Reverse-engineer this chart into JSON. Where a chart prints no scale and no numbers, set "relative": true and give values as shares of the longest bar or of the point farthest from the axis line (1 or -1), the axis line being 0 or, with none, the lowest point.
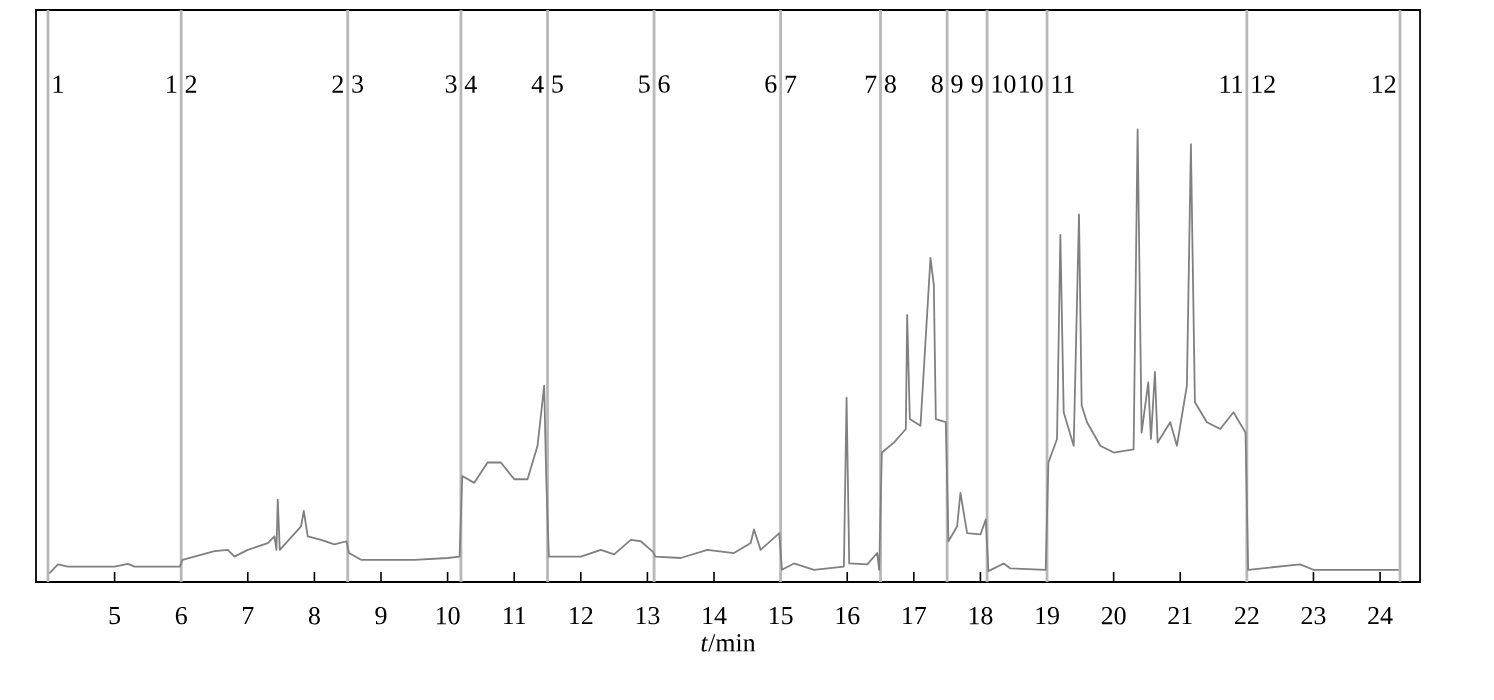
{
  "chart_data": {
    "type": "line",
    "xlabel": "*t*/min",
    "relative": true,
    "xlim": [
      3.82,
      24.6
    ],
    "xticks": [
      5,
      6,
      7,
      8,
      9,
      10,
      11,
      12,
      13,
      14,
      15,
      16,
      17,
      18,
      19,
      20,
      21,
      22,
      23,
      24
    ],
    "series": [
      {
        "color": "#808080",
        "x": [
          4.02,
          4.15,
          4.3,
          5.0,
          5.2,
          5.3,
          5.98,
          6.02,
          6.5,
          6.7,
          6.8,
          7.0,
          7.3,
          7.4,
          7.43,
          7.45,
          7.48,
          7.8,
          7.84,
          7.9,
          8.1,
          8.3,
          8.48,
          8.52,
          8.7,
          9.5,
          10.0,
          10.18,
          10.22,
          10.4,
          10.6,
          10.8,
          11.0,
          11.2,
          11.35,
          11.45,
          11.48,
          11.52,
          12.0,
          12.3,
          12.5,
          12.75,
          12.9,
          13.08,
          13.12,
          13.5,
          13.9,
          14.3,
          14.55,
          14.6,
          14.7,
          14.98,
          15.02,
          15.2,
          15.5,
          15.95,
          15.99,
          16.03,
          16.3,
          16.45,
          16.48,
          16.52,
          16.7,
          16.88,
          16.9,
          16.94,
          17.1,
          17.25,
          17.3,
          17.33,
          17.48,
          17.52,
          17.65,
          17.7,
          17.8,
          18.0,
          18.08,
          18.12,
          18.35,
          18.45,
          18.98,
          19.02,
          19.15,
          19.2,
          19.25,
          19.4,
          19.48,
          19.52,
          19.6,
          19.8,
          20.0,
          20.3,
          20.36,
          20.42,
          20.52,
          20.56,
          20.62,
          20.66,
          20.85,
          20.95,
          21.1,
          21.16,
          21.22,
          21.4,
          21.6,
          21.8,
          21.98,
          22.02,
          22.8,
          23.0,
          24.28
        ],
        "values": [
          0.019,
          0.039,
          0.034,
          0.034,
          0.04,
          0.034,
          0.034,
          0.049,
          0.068,
          0.071,
          0.056,
          0.071,
          0.086,
          0.101,
          0.071,
          0.182,
          0.071,
          0.123,
          0.157,
          0.101,
          0.093,
          0.083,
          0.09,
          0.064,
          0.049,
          0.049,
          0.053,
          0.056,
          0.234,
          0.219,
          0.264,
          0.264,
          0.227,
          0.227,
          0.301,
          0.434,
          0.234,
          0.056,
          0.056,
          0.071,
          0.061,
          0.093,
          0.09,
          0.067,
          0.056,
          0.053,
          0.071,
          0.064,
          0.086,
          0.116,
          0.071,
          0.108,
          0.027,
          0.041,
          0.027,
          0.034,
          0.407,
          0.041,
          0.039,
          0.064,
          0.027,
          0.286,
          0.308,
          0.338,
          0.59,
          0.36,
          0.345,
          0.716,
          0.656,
          0.36,
          0.353,
          0.09,
          0.123,
          0.197,
          0.108,
          0.105,
          0.138,
          0.024,
          0.041,
          0.03,
          0.027,
          0.264,
          0.316,
          0.767,
          0.375,
          0.301,
          0.812,
          0.39,
          0.353,
          0.301,
          0.286,
          0.293,
          1.0,
          0.33,
          0.441,
          0.316,
          0.464,
          0.308,
          0.353,
          0.301,
          0.434,
          0.967,
          0.397,
          0.353,
          0.338,
          0.375,
          0.33,
          0.027,
          0.039,
          0.027,
          0.027
        ]
      }
    ],
    "ref_lines": [
      {
        "axis": "x",
        "value": 4.0,
        "color": "#b8b8b8"
      },
      {
        "axis": "x",
        "value": 6.0,
        "color": "#b8b8b8"
      },
      {
        "axis": "x",
        "value": 8.5,
        "color": "#b8b8b8"
      },
      {
        "axis": "x",
        "value": 10.2,
        "color": "#b8b8b8"
      },
      {
        "axis": "x",
        "value": 11.5,
        "color": "#b8b8b8"
      },
      {
        "axis": "x",
        "value": 13.1,
        "color": "#b8b8b8"
      },
      {
        "axis": "x",
        "value": 15.0,
        "color": "#b8b8b8"
      },
      {
        "axis": "x",
        "value": 16.5,
        "color": "#b8b8b8"
      },
      {
        "axis": "x",
        "value": 17.5,
        "color": "#b8b8b8"
      },
      {
        "axis": "x",
        "value": 18.1,
        "color": "#b8b8b8"
      },
      {
        "axis": "x",
        "value": 19.0,
        "color": "#b8b8b8"
      },
      {
        "axis": "x",
        "value": 22.0,
        "color": "#b8b8b8"
      },
      {
        "axis": "x",
        "value": 24.3,
        "color": "#b8b8b8"
      }
    ],
    "annotations": [
      {
        "text": "1",
        "x": 4.0,
        "y": 1.08
      },
      {
        "text": "1",
        "x": 6.0,
        "y": 1.08
      },
      {
        "text": "2",
        "x": 6.0,
        "y": 1.08
      },
      {
        "text": "2",
        "x": 8.5,
        "y": 1.08
      },
      {
        "text": "3",
        "x": 8.5,
        "y": 1.08
      },
      {
        "text": "3",
        "x": 10.2,
        "y": 1.08
      },
      {
        "text": "4",
        "x": 10.2,
        "y": 1.08
      },
      {
        "text": "4",
        "x": 11.5,
        "y": 1.08
      },
      {
        "text": "5",
        "x": 11.5,
        "y": 1.08
      },
      {
        "text": "5",
        "x": 13.1,
        "y": 1.08
      },
      {
        "text": "6",
        "x": 13.1,
        "y": 1.08
      },
      {
        "text": "6",
        "x": 15.0,
        "y": 1.08
      },
      {
        "text": "7",
        "x": 15.0,
        "y": 1.08
      },
      {
        "text": "7",
        "x": 16.5,
        "y": 1.08
      },
      {
        "text": "8",
        "x": 16.5,
        "y": 1.08
      },
      {
        "text": "8",
        "x": 17.5,
        "y": 1.08
      },
      {
        "text": "9",
        "x": 17.5,
        "y": 1.08
      },
      {
        "text": "9",
        "x": 18.1,
        "y": 1.08
      },
      {
        "text": "10",
        "x": 18.1,
        "y": 1.08
      },
      {
        "text": "10",
        "x": 19.0,
        "y": 1.08
      },
      {
        "text": "11",
        "x": 19.0,
        "y": 1.08
      },
      {
        "text": "11",
        "x": 22.0,
        "y": 1.08
      },
      {
        "text": "12",
        "x": 22.0,
        "y": 1.08
      },
      {
        "text": "12",
        "x": 24.3,
        "y": 1.08
      }
    ]
  }
}
